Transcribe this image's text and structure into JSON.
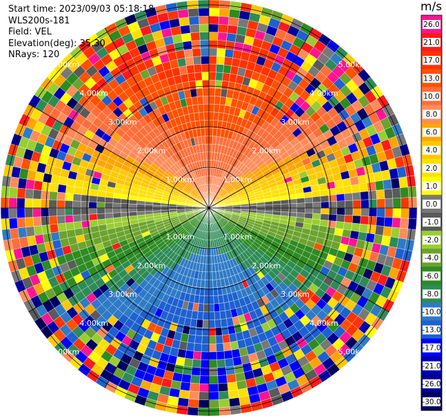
{
  "header": {
    "start_time": "Start time: 2023/09/03 05:18:18",
    "instrument": "WLS200s-181",
    "field": "Field: VEL",
    "elevation": "Elevation(deg): 35.30",
    "nrays": "NRays: 120"
  },
  "chart_data": {
    "type": "heatmap",
    "projection": "polar PPI",
    "field": "VEL",
    "units": "m/s",
    "nrays": 120,
    "range_rings_km": [
      1,
      2,
      3,
      4,
      5
    ],
    "range_ring_labels": [
      "1.00km",
      "2.00km",
      "3.00km",
      "4.00km",
      "5.00km"
    ],
    "colorbar": {
      "title": "m/s",
      "tick_labels": [
        "26.0",
        "21.0",
        "17.0",
        "13.0",
        "10.0",
        "8.0",
        "6.0",
        "4.0",
        "2.0",
        "1.0",
        "0.0",
        "-1.0",
        "-2.0",
        "-4.0",
        "-6.0",
        "-8.0",
        "-10.0",
        "-13.0",
        "-17.0",
        "-21.0",
        "-26.0",
        "-30.0"
      ],
      "colors": [
        "#ff1493",
        "#ff1a1a",
        "#ff3300",
        "#ff5000",
        "#ff6e3a",
        "#ff8c5a",
        "#ffa500",
        "#ffc800",
        "#ffe000",
        "#ffff00",
        "#787878",
        "#5a5a5a",
        "#9acd32",
        "#6ba32e",
        "#2e8b22",
        "#2e8b57",
        "#2e7ac6",
        "#1e60d0",
        "#0000ff",
        "#0000b0",
        "#000090",
        "#000060"
      ]
    },
    "pattern": "positive velocities (yellow/orange) to the north near center, negative velocities (green/blue) to the south, noisy multicolour values beyond about 2 km"
  }
}
